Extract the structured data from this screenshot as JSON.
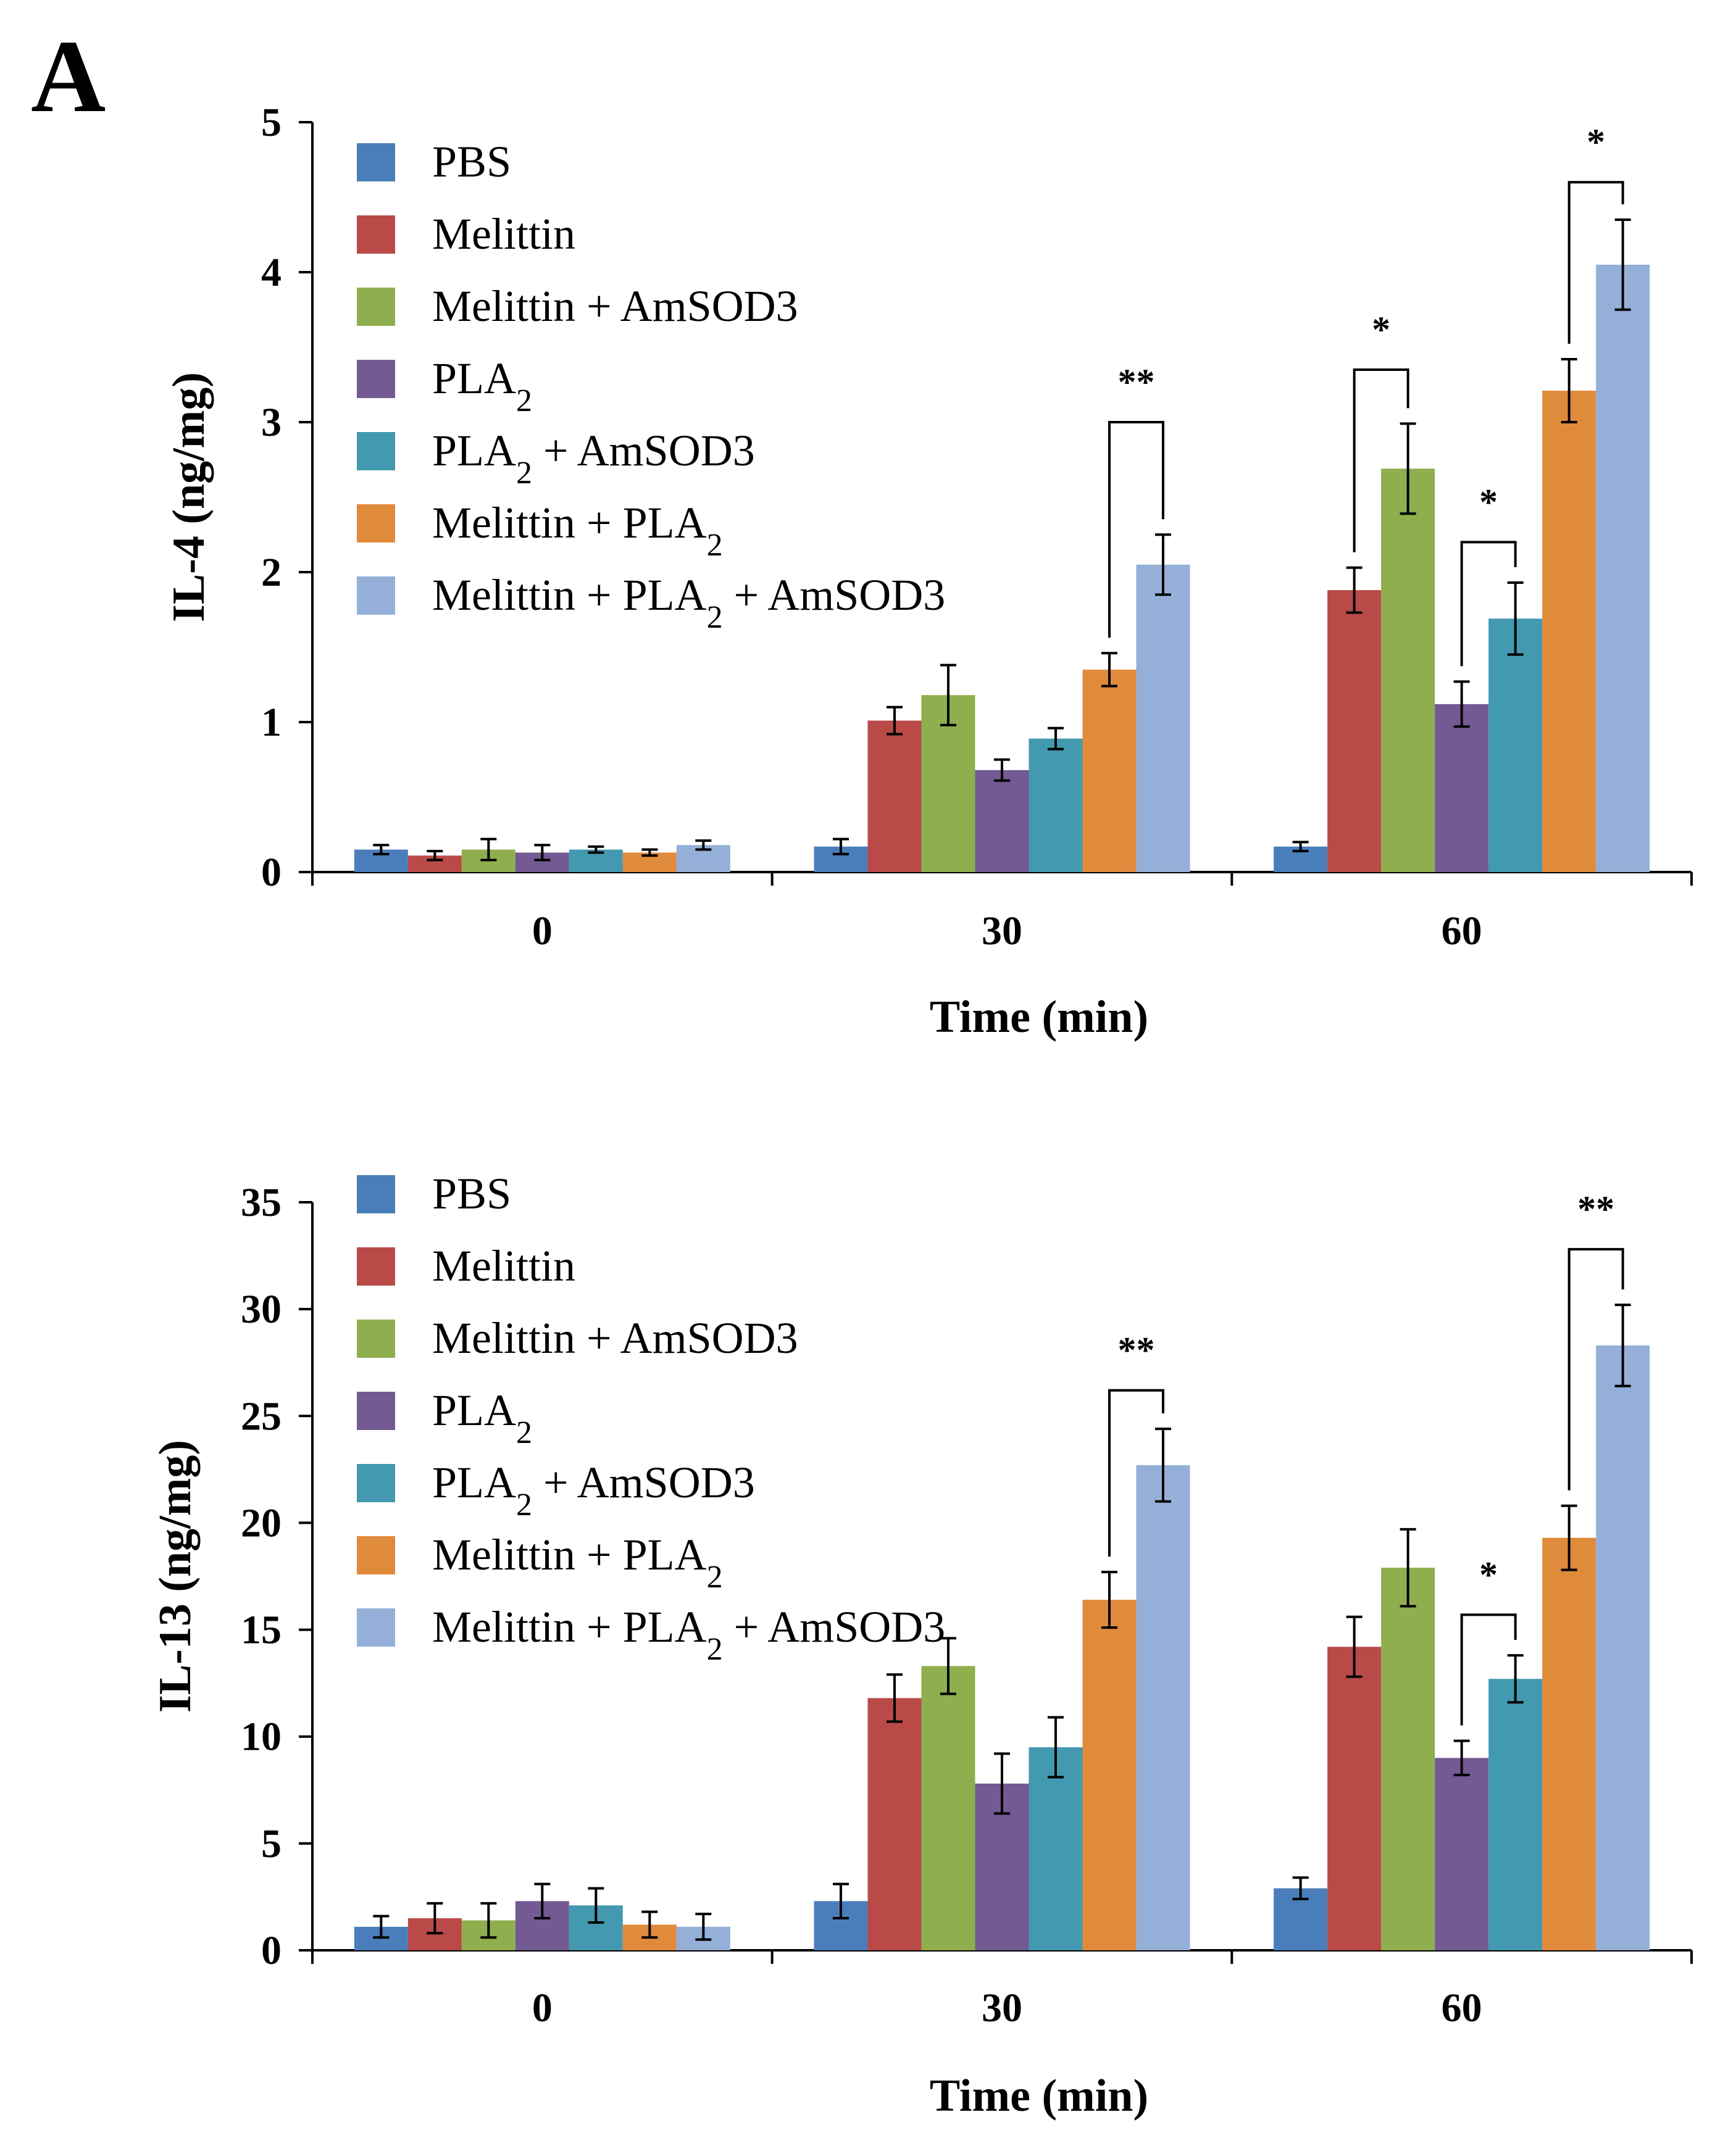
{
  "panel_label": "A",
  "colors": {
    "PBS": "#4a7ebb",
    "Melittin": "#b94a48",
    "Melittin + AmSOD3": "#8fae4d",
    "PLA2": "#735a93",
    "PLA2 + AmSOD3": "#4299b0",
    "Melittin + PLA2": "#e08a3c",
    "Melittin + PLA2 + AmSOD3": "#95b0d8"
  },
  "legend": [
    {
      "parts": [
        {
          "t": "PBS"
        }
      ]
    },
    {
      "parts": [
        {
          "t": "Melittin"
        }
      ]
    },
    {
      "parts": [
        {
          "t": "Melittin  + AmSOD3"
        }
      ]
    },
    {
      "parts": [
        {
          "t": "PLA"
        },
        {
          "t": "2",
          "sub": true
        }
      ]
    },
    {
      "parts": [
        {
          "t": "PLA"
        },
        {
          "t": "2",
          "sub": true
        },
        {
          "t": " + AmSOD3"
        }
      ]
    },
    {
      "parts": [
        {
          "t": "Melittin  + PLA"
        },
        {
          "t": "2",
          "sub": true
        }
      ]
    },
    {
      "parts": [
        {
          "t": "Melittin  + PLA"
        },
        {
          "t": "2",
          "sub": true
        },
        {
          "t": " + AmSOD3"
        }
      ]
    }
  ],
  "chart_data": [
    {
      "type": "bar",
      "title": "",
      "xlabel": "Time (min)",
      "ylabel": "IL-4 (ng/mg)",
      "categories": [
        "0",
        "30",
        "60"
      ],
      "ylim": [
        0,
        5
      ],
      "yticks": [
        0,
        1,
        2,
        3,
        4,
        5
      ],
      "series": [
        {
          "name": "PBS",
          "values": [
            0.15,
            0.17,
            0.17
          ],
          "errors": [
            0.03,
            0.05,
            0.03
          ]
        },
        {
          "name": "Melittin",
          "values": [
            0.11,
            1.01,
            1.88
          ],
          "errors": [
            0.03,
            0.09,
            0.15
          ]
        },
        {
          "name": "Melittin + AmSOD3",
          "values": [
            0.15,
            1.18,
            2.69
          ],
          "errors": [
            0.07,
            0.2,
            0.3
          ]
        },
        {
          "name": "PLA2",
          "values": [
            0.13,
            0.68,
            1.12
          ],
          "errors": [
            0.05,
            0.07,
            0.15
          ]
        },
        {
          "name": "PLA2 + AmSOD3",
          "values": [
            0.15,
            0.89,
            1.69
          ],
          "errors": [
            0.02,
            0.07,
            0.24
          ]
        },
        {
          "name": "Melittin + PLA2",
          "values": [
            0.13,
            1.35,
            3.21
          ],
          "errors": [
            0.02,
            0.11,
            0.21
          ]
        },
        {
          "name": "Melittin + PLA2 + AmSOD3",
          "values": [
            0.18,
            2.05,
            4.05
          ],
          "errors": [
            0.03,
            0.2,
            0.3
          ]
        }
      ],
      "significance": [
        {
          "category": "30",
          "from": 5,
          "to": 6,
          "label": "**",
          "level": 3.0
        },
        {
          "category": "60",
          "from": 1,
          "to": 2,
          "label": "*",
          "level": 3.35
        },
        {
          "category": "60",
          "from": 3,
          "to": 4,
          "label": "*",
          "level": 2.2
        },
        {
          "category": "60",
          "from": 5,
          "to": 6,
          "label": "*",
          "level": 4.6
        }
      ]
    },
    {
      "type": "bar",
      "title": "",
      "xlabel": "Time (min)",
      "ylabel": "IL-13 (ng/mg)",
      "categories": [
        "0",
        "30",
        "60"
      ],
      "ylim": [
        0,
        35
      ],
      "yticks": [
        0,
        5,
        10,
        15,
        20,
        25,
        30,
        35
      ],
      "series": [
        {
          "name": "PBS",
          "values": [
            1.1,
            2.3,
            2.9
          ],
          "errors": [
            0.5,
            0.8,
            0.5
          ]
        },
        {
          "name": "Melittin",
          "values": [
            1.5,
            11.8,
            14.2
          ],
          "errors": [
            0.7,
            1.1,
            1.4
          ]
        },
        {
          "name": "Melittin + AmSOD3",
          "values": [
            1.4,
            13.3,
            17.9
          ],
          "errors": [
            0.8,
            1.3,
            1.8
          ]
        },
        {
          "name": "PLA2",
          "values": [
            2.3,
            7.8,
            9.0
          ],
          "errors": [
            0.8,
            1.4,
            0.8
          ]
        },
        {
          "name": "PLA2 + AmSOD3",
          "values": [
            2.1,
            9.5,
            12.7
          ],
          "errors": [
            0.8,
            1.4,
            1.1
          ]
        },
        {
          "name": "Melittin + PLA2",
          "values": [
            1.2,
            16.4,
            19.3
          ],
          "errors": [
            0.6,
            1.3,
            1.5
          ]
        },
        {
          "name": "Melittin + PLA2 + AmSOD3",
          "values": [
            1.1,
            22.7,
            28.3
          ],
          "errors": [
            0.6,
            1.7,
            1.9
          ]
        }
      ],
      "significance": [
        {
          "category": "30",
          "from": 5,
          "to": 6,
          "label": "**",
          "level": 26.2
        },
        {
          "category": "60",
          "from": 3,
          "to": 4,
          "label": "*",
          "level": 15.7
        },
        {
          "category": "60",
          "from": 5,
          "to": 6,
          "label": "**",
          "level": 32.8
        }
      ]
    }
  ]
}
